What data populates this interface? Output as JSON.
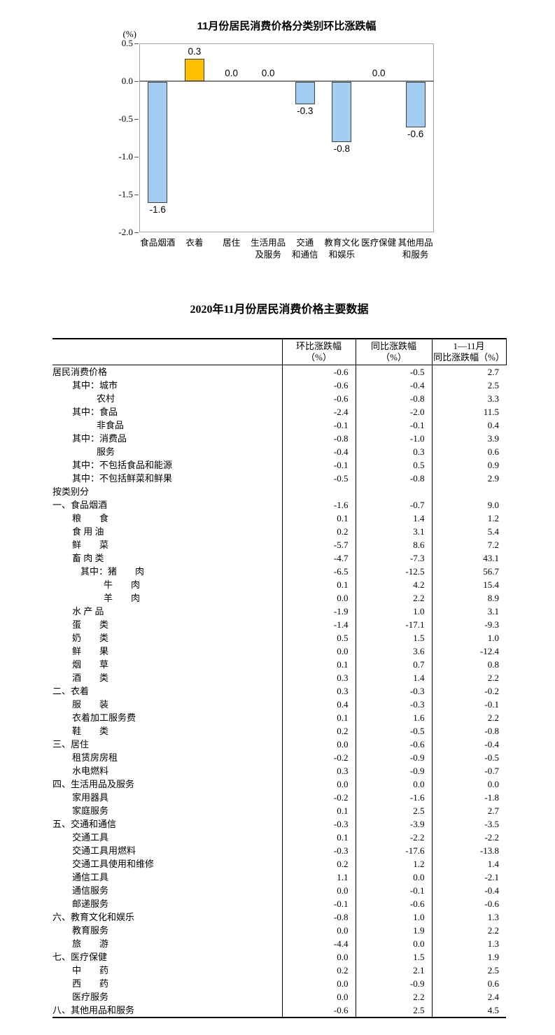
{
  "chart_data": {
    "type": "bar",
    "title": "11月份居民消费价格分类别环比涨跌幅",
    "ylabel": "(%)",
    "xlabel": "",
    "ylim": [
      -2.0,
      0.5
    ],
    "yticks": [
      "0.5",
      "0.0",
      "-0.5",
      "-1.0",
      "-1.5",
      "-2.0"
    ],
    "grid": false,
    "legend": "none",
    "categories": [
      "食品烟酒",
      "衣着",
      "居住",
      "生活用品及服务",
      "交通和通信",
      "教育文化和娱乐",
      "医疗保健",
      "其他用品和服务"
    ],
    "category_label_lines": [
      [
        "食品烟酒"
      ],
      [
        "衣着"
      ],
      [
        "居住"
      ],
      [
        "生活用品",
        "及服务"
      ],
      [
        "交通",
        "和通信"
      ],
      [
        "教育文化",
        "和娱乐"
      ],
      [
        "医疗保健"
      ],
      [
        "其他用品",
        "和服务"
      ]
    ],
    "values": [
      -1.6,
      0.3,
      0.0,
      0.0,
      -0.3,
      -0.8,
      0.0,
      -0.6
    ],
    "colors": {
      "positive_bar": "#FFC000",
      "negative_bar": "#A3CCF2",
      "bar_border": "#404040",
      "zero_line": "#808080",
      "plot_border": "#A6A6A6"
    }
  },
  "table": {
    "title": "2020年11月份居民消费价格主要数据",
    "columns": [
      {
        "lines": [
          "",
          ""
        ]
      },
      {
        "lines": [
          "环比涨跌幅",
          "（%）"
        ]
      },
      {
        "lines": [
          "同比涨跌幅",
          "（%）"
        ]
      },
      {
        "lines": [
          "1—11月",
          "同比涨跌幅（%）"
        ]
      }
    ],
    "rows": [
      {
        "label": "居民消费价格",
        "indent": 0,
        "values": [
          "-0.6",
          "-0.5",
          "2.7"
        ]
      },
      {
        "label": "其中：城市",
        "indent": 28,
        "values": [
          "-0.6",
          "-0.4",
          "2.5"
        ]
      },
      {
        "label": "农村",
        "indent": 63,
        "values": [
          "-0.6",
          "-0.8",
          "3.3"
        ]
      },
      {
        "label": "其中：食品",
        "indent": 28,
        "values": [
          "-2.4",
          "-2.0",
          "11.5"
        ]
      },
      {
        "label": "非食品",
        "indent": 63,
        "values": [
          "-0.1",
          "-0.1",
          "0.4"
        ]
      },
      {
        "label": "其中：消费品",
        "indent": 28,
        "values": [
          "-0.8",
          "-1.0",
          "3.9"
        ]
      },
      {
        "label": "服务",
        "indent": 63,
        "values": [
          "-0.4",
          "0.3",
          "0.6"
        ]
      },
      {
        "label": "其中：不包括食品和能源",
        "indent": 28,
        "values": [
          "-0.1",
          "0.5",
          "0.9"
        ]
      },
      {
        "label": "其中：不包括鲜菜和鲜果",
        "indent": 28,
        "values": [
          "-0.5",
          "-0.8",
          "2.9"
        ]
      },
      {
        "label": "按类别分",
        "indent": 0,
        "values": [
          "",
          "",
          ""
        ]
      },
      {
        "label": "一、食品烟酒",
        "indent": 0,
        "values": [
          "-1.6",
          "-0.7",
          "9.0"
        ]
      },
      {
        "label": "粮　　食",
        "indent": 28,
        "values": [
          "0.1",
          "1.4",
          "1.2"
        ]
      },
      {
        "label": "食 用 油",
        "indent": 28,
        "values": [
          "0.2",
          "3.1",
          "5.4"
        ]
      },
      {
        "label": "鲜　　菜",
        "indent": 28,
        "values": [
          "-5.7",
          "8.6",
          "7.2"
        ]
      },
      {
        "label": "畜 肉 类",
        "indent": 28,
        "values": [
          "-4.7",
          "-7.3",
          "43.1"
        ]
      },
      {
        "label": "其中：猪　　肉",
        "indent": 40,
        "values": [
          "-6.5",
          "-12.5",
          "56.7"
        ]
      },
      {
        "label": "牛　　肉",
        "indent": 73,
        "values": [
          "0.1",
          "4.2",
          "15.4"
        ]
      },
      {
        "label": "羊　　肉",
        "indent": 73,
        "values": [
          "0.0",
          "2.2",
          "8.9"
        ]
      },
      {
        "label": "水 产 品",
        "indent": 28,
        "values": [
          "-1.9",
          "1.0",
          "3.1"
        ]
      },
      {
        "label": "蛋　　类",
        "indent": 28,
        "values": [
          "-1.4",
          "-17.1",
          "-9.3"
        ]
      },
      {
        "label": "奶　　类",
        "indent": 28,
        "values": [
          "0.5",
          "1.5",
          "1.0"
        ]
      },
      {
        "label": "鲜　　果",
        "indent": 28,
        "values": [
          "0.0",
          "3.6",
          "-12.4"
        ]
      },
      {
        "label": "烟　　草",
        "indent": 28,
        "values": [
          "0.1",
          "0.7",
          "0.8"
        ]
      },
      {
        "label": "酒　　类",
        "indent": 28,
        "values": [
          "0.3",
          "1.4",
          "2.2"
        ]
      },
      {
        "label": "二、衣着",
        "indent": 0,
        "values": [
          "0.3",
          "-0.3",
          "-0.2"
        ]
      },
      {
        "label": "服　　装",
        "indent": 28,
        "values": [
          "0.4",
          "-0.3",
          "-0.1"
        ]
      },
      {
        "label": "衣着加工服务费",
        "indent": 28,
        "values": [
          "0.1",
          "1.6",
          "2.2"
        ]
      },
      {
        "label": "鞋　　类",
        "indent": 28,
        "values": [
          "0.2",
          "-0.5",
          "-0.8"
        ]
      },
      {
        "label": "三、居住",
        "indent": 0,
        "values": [
          "0.0",
          "-0.6",
          "-0.4"
        ]
      },
      {
        "label": "租赁房房租",
        "indent": 28,
        "values": [
          "-0.2",
          "-0.9",
          "-0.5"
        ]
      },
      {
        "label": "水电燃料",
        "indent": 28,
        "values": [
          "0.3",
          "-0.9",
          "-0.7"
        ]
      },
      {
        "label": "四、生活用品及服务",
        "indent": 0,
        "values": [
          "0.0",
          "0.0",
          "0.0"
        ]
      },
      {
        "label": "家用器具",
        "indent": 28,
        "values": [
          "-0.2",
          "-1.6",
          "-1.8"
        ]
      },
      {
        "label": "家庭服务",
        "indent": 28,
        "values": [
          "0.1",
          "2.5",
          "2.7"
        ]
      },
      {
        "label": "五、交通和通信",
        "indent": 0,
        "values": [
          "-0.3",
          "-3.9",
          "-3.5"
        ]
      },
      {
        "label": "交通工具",
        "indent": 28,
        "values": [
          "0.1",
          "-2.2",
          "-2.2"
        ]
      },
      {
        "label": "交通工具用燃料",
        "indent": 28,
        "values": [
          "-0.3",
          "-17.6",
          "-13.8"
        ]
      },
      {
        "label": "交通工具使用和维修",
        "indent": 28,
        "values": [
          "0.2",
          "1.2",
          "1.4"
        ]
      },
      {
        "label": "通信工具",
        "indent": 28,
        "values": [
          "1.1",
          "0.0",
          "-2.1"
        ]
      },
      {
        "label": "通信服务",
        "indent": 28,
        "values": [
          "0.0",
          "-0.1",
          "-0.4"
        ]
      },
      {
        "label": "邮递服务",
        "indent": 28,
        "values": [
          "-0.1",
          "-0.6",
          "-0.6"
        ]
      },
      {
        "label": "六、教育文化和娱乐",
        "indent": 0,
        "values": [
          "-0.8",
          "1.0",
          "1.3"
        ]
      },
      {
        "label": "教育服务",
        "indent": 28,
        "values": [
          "0.0",
          "1.9",
          "2.2"
        ]
      },
      {
        "label": "旅　　游",
        "indent": 28,
        "values": [
          "-4.4",
          "0.0",
          "1.3"
        ]
      },
      {
        "label": "七、医疗保健",
        "indent": 0,
        "values": [
          "0.0",
          "1.5",
          "1.9"
        ]
      },
      {
        "label": "中　　药",
        "indent": 28,
        "values": [
          "0.2",
          "2.1",
          "2.5"
        ]
      },
      {
        "label": "西　　药",
        "indent": 28,
        "values": [
          "0.0",
          "-0.9",
          "0.6"
        ]
      },
      {
        "label": "医疗服务",
        "indent": 28,
        "values": [
          "0.0",
          "2.2",
          "2.4"
        ]
      },
      {
        "label": "八、其他用品和服务",
        "indent": 0,
        "values": [
          "-0.6",
          "2.5",
          "4.5"
        ]
      }
    ]
  }
}
